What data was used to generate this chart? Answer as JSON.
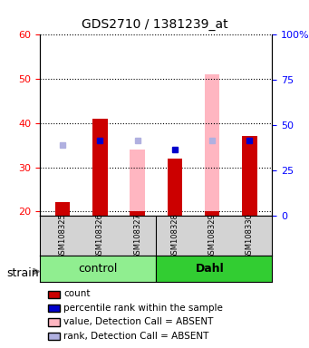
{
  "title": "GDS2710 / 1381239_at",
  "samples": [
    "GSM108325",
    "GSM108326",
    "GSM108327",
    "GSM108328",
    "GSM108329",
    "GSM108330"
  ],
  "groups": [
    "control",
    "control",
    "control",
    "Dahl",
    "Dahl",
    "Dahl"
  ],
  "ylim_left": [
    19,
    60
  ],
  "ylim_right": [
    0,
    100
  ],
  "yticks_left": [
    20,
    30,
    40,
    50,
    60
  ],
  "yticks_right": [
    0,
    25,
    50,
    75,
    100
  ],
  "yticklabels_right": [
    "0",
    "25",
    "50",
    "75",
    "100%"
  ],
  "red_bars": {
    "bottom": [
      19,
      19,
      19,
      19,
      19,
      19
    ],
    "height": [
      3,
      22,
      1,
      13,
      1,
      18
    ]
  },
  "pink_bars": {
    "bottom": [
      19,
      19,
      19,
      19,
      19,
      19
    ],
    "height": [
      3,
      22,
      15,
      13,
      32,
      18
    ]
  },
  "blue_squares": {
    "x": [
      0,
      1,
      2,
      3,
      4,
      5
    ],
    "y": [
      35,
      36,
      36,
      34,
      36,
      36
    ]
  },
  "lavender_squares": {
    "x": [
      0,
      2,
      4
    ],
    "y": [
      35,
      36,
      36
    ]
  },
  "group_colors": {
    "control": "#90EE90",
    "Dahl": "#32CD32"
  },
  "bar_width": 0.4,
  "colors": {
    "red": "#CC0000",
    "pink": "#FFB6C1",
    "blue": "#0000CC",
    "lavender": "#B0B0E0"
  },
  "legend_items": [
    {
      "color": "#CC0000",
      "label": "count"
    },
    {
      "color": "#0000CC",
      "label": "percentile rank within the sample"
    },
    {
      "color": "#FFB6C1",
      "label": "value, Detection Call = ABSENT"
    },
    {
      "color": "#B0B0E0",
      "label": "rank, Detection Call = ABSENT"
    }
  ],
  "strain_label": "strain",
  "group_label_fontsize": 9,
  "tick_fontsize": 8
}
